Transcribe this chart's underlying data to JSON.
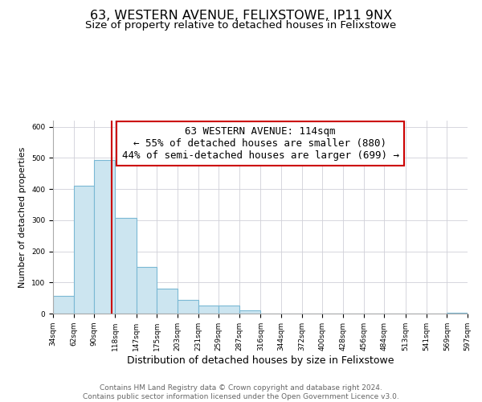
{
  "title": "63, WESTERN AVENUE, FELIXSTOWE, IP11 9NX",
  "subtitle": "Size of property relative to detached houses in Felixstowe",
  "xlabel": "Distribution of detached houses by size in Felixstowe",
  "ylabel": "Number of detached properties",
  "bin_edges": [
    34,
    62,
    90,
    118,
    147,
    175,
    203,
    231,
    259,
    287,
    316,
    344,
    372,
    400,
    428,
    456,
    484,
    513,
    541,
    569,
    597
  ],
  "bin_labels": [
    "34sqm",
    "62sqm",
    "90sqm",
    "118sqm",
    "147sqm",
    "175sqm",
    "203sqm",
    "231sqm",
    "259sqm",
    "287sqm",
    "316sqm",
    "344sqm",
    "372sqm",
    "400sqm",
    "428sqm",
    "456sqm",
    "484sqm",
    "513sqm",
    "541sqm",
    "569sqm",
    "597sqm"
  ],
  "counts": [
    57,
    410,
    493,
    307,
    149,
    81,
    44,
    25,
    25,
    10,
    0,
    1,
    0,
    0,
    0,
    0,
    0,
    0,
    0,
    2
  ],
  "bar_color": "#cce5f0",
  "bar_edge_color": "#7ab8d4",
  "vline_x": 114,
  "vline_color": "#cc0000",
  "annotation_lines": [
    "63 WESTERN AVENUE: 114sqm",
    "← 55% of detached houses are smaller (880)",
    "44% of semi-detached houses are larger (699) →"
  ],
  "ylim": [
    0,
    620
  ],
  "footer_line1": "Contains HM Land Registry data © Crown copyright and database right 2024.",
  "footer_line2": "Contains public sector information licensed under the Open Government Licence v3.0.",
  "title_fontsize": 11.5,
  "subtitle_fontsize": 9.5,
  "xlabel_fontsize": 9,
  "ylabel_fontsize": 8,
  "annotation_fontsize": 9,
  "footer_fontsize": 6.5,
  "tick_fontsize": 6.5
}
